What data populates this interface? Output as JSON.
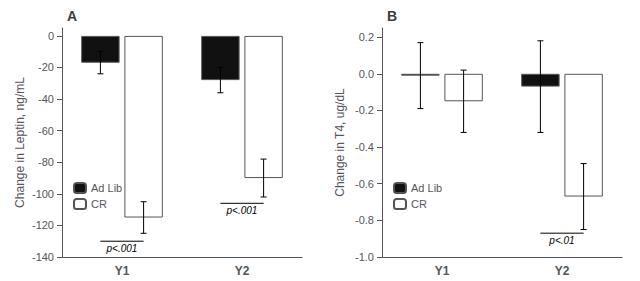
{
  "chart_data": [
    {
      "type": "bar",
      "title": "A",
      "ylabel": "Change in Leptin, ng/mL",
      "categories": [
        "Y1",
        "Y2"
      ],
      "series": [
        {
          "name": "Ad Lib",
          "color": "#111111",
          "values": [
            -17,
            -28
          ],
          "errors": [
            7,
            8
          ]
        },
        {
          "name": "CR",
          "color": "#ffffff",
          "values": [
            -115,
            -90
          ],
          "errors": [
            10,
            12
          ]
        }
      ],
      "ylim": [
        -140,
        5
      ],
      "yticks": [
        0,
        -20,
        -40,
        -60,
        -80,
        -100,
        -120,
        -140
      ],
      "grid": false,
      "legend": "lower left",
      "annotations": [
        {
          "text": "p<.001",
          "category": "Y1",
          "y": -130
        },
        {
          "text": "p<.001",
          "category": "Y2",
          "y": -106
        }
      ]
    },
    {
      "type": "bar",
      "title": "B",
      "ylabel": "Change in T4, ug/dL",
      "categories": [
        "Y1",
        "Y2"
      ],
      "series": [
        {
          "name": "Ad Lib",
          "color": "#111111",
          "values": [
            -0.01,
            -0.07
          ],
          "errors": [
            0.18,
            0.25
          ]
        },
        {
          "name": "CR",
          "color": "#ffffff",
          "values": [
            -0.15,
            -0.67
          ],
          "errors": [
            0.17,
            0.18
          ]
        }
      ],
      "ylim": [
        -1.0,
        0.25
      ],
      "yticks": [
        0.2,
        {
          "value": 0.0,
          "label": "0.0"
        },
        -0.2,
        -0.4,
        -0.6,
        -0.8,
        {
          "value": -1.0,
          "label": "-1.0"
        }
      ],
      "grid": false,
      "legend": "lower left",
      "annotations": [
        {
          "text": "p<.01",
          "category": "Y2",
          "y": -0.87
        }
      ]
    }
  ]
}
